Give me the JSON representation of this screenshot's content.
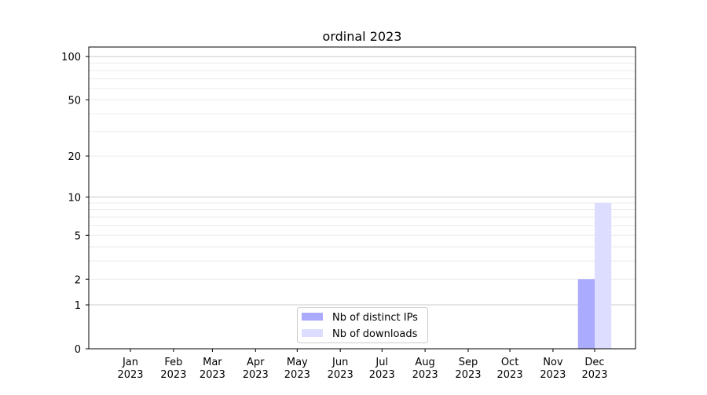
{
  "chart_data": {
    "type": "bar",
    "title": "ordinal 2023",
    "xlabel": "",
    "ylabel": "",
    "yscale": "log(1+y)",
    "ylim": [
      0,
      116
    ],
    "yticks": [
      0,
      1,
      2,
      5,
      10,
      20,
      50,
      100
    ],
    "grid": true,
    "legend_position": "bottom-center",
    "categories": [
      "Jan\n2023",
      "Feb\n2023",
      "Mar\n2023",
      "Apr\n2023",
      "May\n2023",
      "Jun\n2023",
      "Jul\n2023",
      "Aug\n2023",
      "Sep\n2023",
      "Oct\n2023",
      "Nov\n2023",
      "Dec\n2023"
    ],
    "category_days": [
      0,
      31,
      59,
      90,
      120,
      151,
      181,
      212,
      243,
      273,
      304,
      334
    ],
    "series": [
      {
        "name": "Nb of distinct IPs",
        "color": "#aaaaff",
        "values": [
          0,
          0,
          0,
          0,
          0,
          0,
          0,
          0,
          0,
          0,
          0,
          2
        ]
      },
      {
        "name": "Nb of downloads",
        "color": "#ddddff",
        "values": [
          0,
          0,
          0,
          0,
          0,
          0,
          0,
          0,
          0,
          0,
          0,
          9
        ]
      }
    ]
  }
}
